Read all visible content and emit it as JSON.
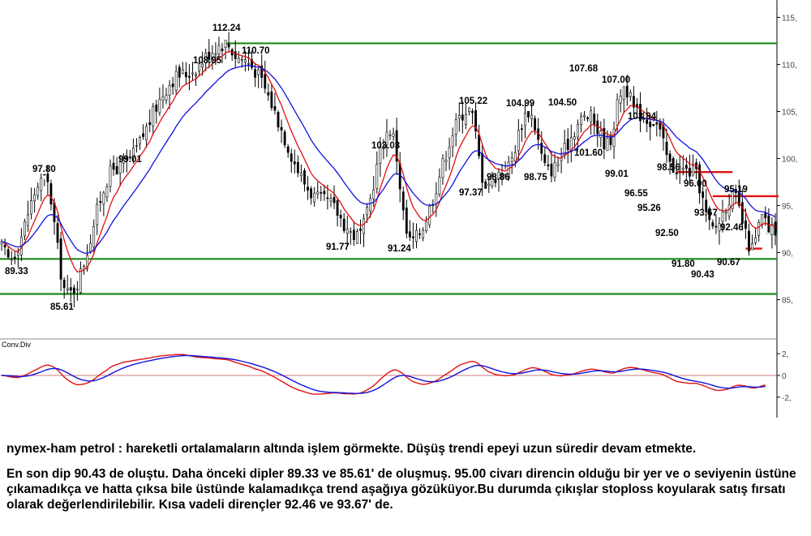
{
  "chart_data": [
    {
      "type": "candlestick",
      "panel": "price",
      "title": "",
      "y_ticks": [
        "115,",
        "110,",
        "105,",
        "100,",
        "95,",
        "90,",
        "85,"
      ],
      "ylim": [
        81,
        116.5
      ],
      "series": [
        {
          "kind": "moving-average",
          "color": "#e01010"
        },
        {
          "kind": "moving-average",
          "color": "#1010e0"
        }
      ],
      "annotations": [
        "112.24",
        "110.70",
        "108.95",
        "97.80",
        "99.01",
        "89.33",
        "85.61",
        "103.03",
        "91.77",
        "91.24",
        "105.22",
        "104.99",
        "104.50",
        "107.68",
        "107.00",
        "103.94",
        "101.60",
        "99.01",
        "97.37",
        "98.86",
        "98.75",
        "98.56",
        "96.00",
        "95.19",
        "96.55",
        "95.26",
        "93.67",
        "92.46",
        "92.50",
        "91.80",
        "90.67",
        "90.43"
      ],
      "levels": [
        {
          "value": 112.24,
          "color": "#1a8a1a",
          "kind": "resistance"
        },
        {
          "value": 89.33,
          "color": "#1a8a1a",
          "kind": "support"
        },
        {
          "value": 85.61,
          "color": "#1a8a1a",
          "kind": "support"
        },
        {
          "value": 98.56,
          "color": "#e01010",
          "kind": "resistance"
        },
        {
          "value": 96.0,
          "color": "#e01010",
          "kind": "resistance"
        },
        {
          "value": 90.43,
          "color": "#e01010",
          "kind": "low"
        },
        {
          "value": 92.0,
          "color": "#a8e6a8",
          "kind": "marker"
        }
      ],
      "swing_points": [
        {
          "i": 2,
          "v": 89.33
        },
        {
          "i": 13,
          "v": 97.8
        },
        {
          "i": 20,
          "v": 85.61
        },
        {
          "i": 35,
          "v": 99.01
        },
        {
          "i": 55,
          "v": 108.95
        },
        {
          "i": 68,
          "v": 112.24
        },
        {
          "i": 72,
          "v": 110.7
        },
        {
          "i": 98,
          "v": 95.5
        },
        {
          "i": 108,
          "v": 91.77
        },
        {
          "i": 118,
          "v": 103.03
        },
        {
          "i": 124,
          "v": 91.24
        },
        {
          "i": 142,
          "v": 105.22
        },
        {
          "i": 147,
          "v": 97.37
        },
        {
          "i": 153,
          "v": 98.86
        },
        {
          "i": 160,
          "v": 104.99
        },
        {
          "i": 166,
          "v": 98.75
        },
        {
          "i": 178,
          "v": 104.5
        },
        {
          "i": 184,
          "v": 101.6
        },
        {
          "i": 189,
          "v": 107.68
        },
        {
          "i": 193,
          "v": 104.8
        },
        {
          "i": 198,
          "v": 103.94
        },
        {
          "i": 204,
          "v": 99.01
        },
        {
          "i": 210,
          "v": 98.56
        },
        {
          "i": 216,
          "v": 92.5
        },
        {
          "i": 222,
          "v": 96.0
        },
        {
          "i": 228,
          "v": 90.43
        },
        {
          "i": 231,
          "v": 93.67
        },
        {
          "i": 233,
          "v": 92.46
        }
      ]
    },
    {
      "type": "line",
      "panel": "oscillator",
      "title": "Conv.Div",
      "y_ticks": [
        "2,",
        "0",
        "-2,"
      ],
      "ylim": [
        -3.5,
        3.2
      ],
      "series": [
        {
          "color": "#e01010"
        },
        {
          "color": "#1010e0"
        }
      ]
    }
  ],
  "commentary": {
    "paragraph_1": "nymex-ham petrol : hareketli ortalamaların altında işlem görmekte. Düşüş trendi epeyi uzun süredir devam etmekte.",
    "paragraph_2": "En son dip 90.43 de oluştu. Daha önceki dipler 89.33 ve 85.61' de oluşmuş. 95.00 civarı direncin olduğu bir yer ve o seviyenin üstüne çıkamadıkça ve hatta çıksa bile üstünde kalamadıkça trend aşağıya gözüküyor.Bu durumda çıkışlar stoploss koyularak satış fırsatı olarak değerlendirilebilir. Kısa vadeli dirençler 92.46 ve 93.67' de."
  }
}
